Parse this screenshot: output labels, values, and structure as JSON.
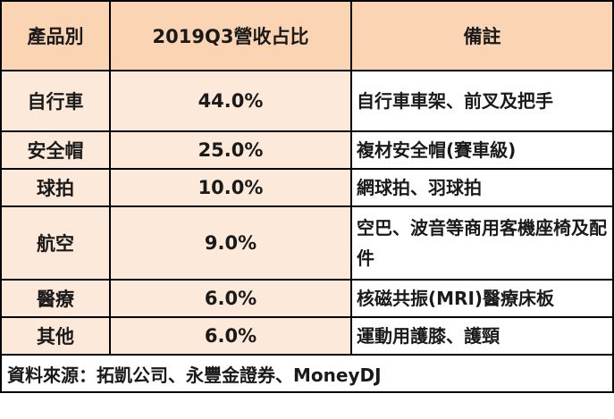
{
  "table": {
    "headers": [
      "產品別",
      "2019Q3營收占比",
      "備註"
    ],
    "rows": [
      {
        "category": "自行車",
        "share": "44.0%",
        "note": "自行車車架、前叉及把手"
      },
      {
        "category": "安全帽",
        "share": "25.0%",
        "note": "複材安全帽(賽車級)"
      },
      {
        "category": "球拍",
        "share": "10.0%",
        "note": "網球拍、羽球拍"
      },
      {
        "category": "航空",
        "share": "9.0%",
        "note": "空巴、波音等商用客機座椅及配件"
      },
      {
        "category": "醫療",
        "share": "6.0%",
        "note": "核磁共振(MRI)醫療床板"
      },
      {
        "category": "其他",
        "share": "6.0%",
        "note": "運動用護膝、護頸"
      }
    ],
    "source": "資料來源：拓凱公司、永豐金證券、MoneyDJ"
  },
  "colors": {
    "header_bg": "#fbd4b4",
    "body_bg": "#fde9d9",
    "note_bg": "#ffffff",
    "border": "#000000"
  }
}
